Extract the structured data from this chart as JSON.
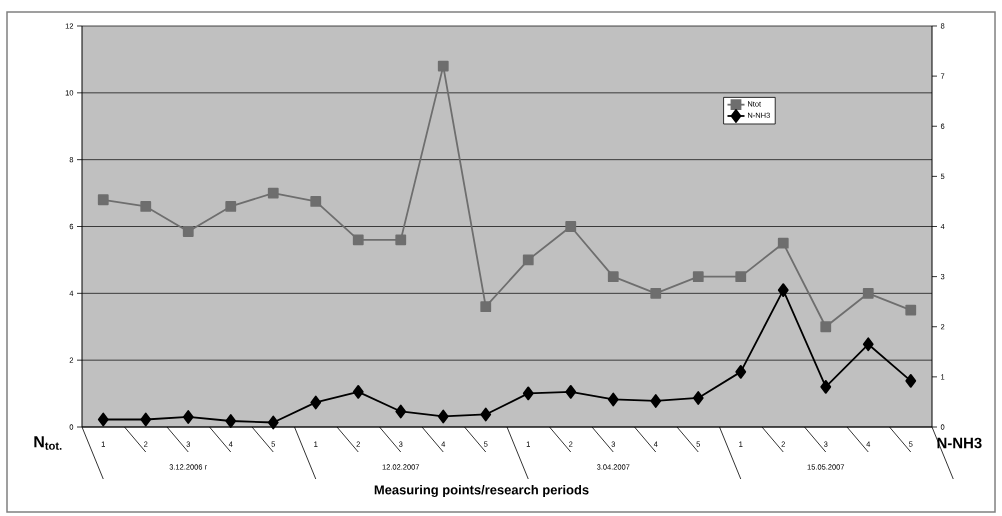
{
  "chart_data": {
    "type": "line",
    "xlabel": "Measuring points/research periods",
    "ylabel": "N$_{tot.}$",
    "y2label": "N-NH3",
    "categories": [
      "1",
      "2",
      "3",
      "4",
      "5",
      "1",
      "2",
      "3",
      "4",
      "5",
      "1",
      "2",
      "3",
      "4",
      "5",
      "1",
      "2",
      "3",
      "4",
      "5"
    ],
    "annotations": [
      "3.12.2006 г",
      "12.02.2007",
      "3.04.2007",
      "15.05.2007"
    ],
    "series": [
      {
        "name": "Ntot",
        "color": "#6e6e6e",
        "marker": "square",
        "values": [
          6.8,
          6.6,
          5.85,
          6.6,
          7.0,
          6.75,
          5.6,
          5.6,
          10.8,
          3.6,
          5.0,
          6.0,
          4.5,
          4.0,
          4.5,
          4.5,
          5.5,
          3.0,
          4.0,
          3.5
        ]
      },
      {
        "name": "N-NH3",
        "color": "#000000",
        "marker": "diamond",
        "axis": "y2",
        "values": [
          0.15,
          0.15,
          0.2,
          0.12,
          0.09,
          0.49,
          0.7,
          0.31,
          0.21,
          0.25,
          0.67,
          0.7,
          0.55,
          0.52,
          0.58,
          1.1,
          2.73,
          0.8,
          1.65,
          0.92
        ]
      }
    ],
    "ylim": [
      0,
      12
    ],
    "yticks": [
      0,
      2,
      4,
      6,
      8,
      10,
      12
    ],
    "y2lim": [
      0,
      8
    ],
    "y2ticks": [
      0,
      1,
      2,
      3,
      4,
      5,
      6,
      7,
      8
    ],
    "grid": "y",
    "legend": "top right",
    "line_style": "solid"
  }
}
